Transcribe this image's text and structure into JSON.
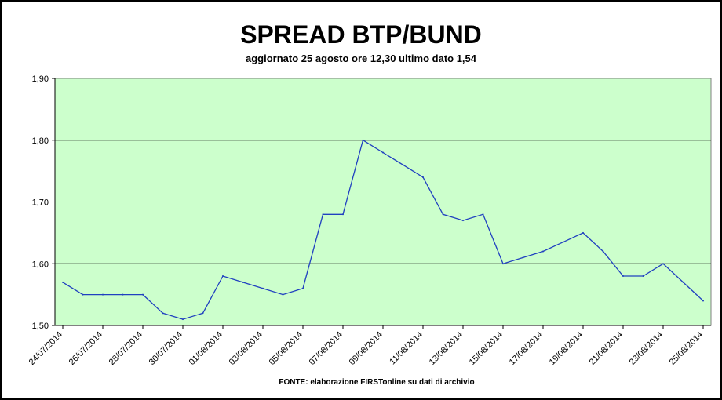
{
  "chart_data": {
    "type": "line",
    "title": "SPREAD BTP/BUND",
    "subtitle": "aggiornato 25 agosto ore 12,30 ultimo dato 1,54",
    "source": "FONTE: elaborazione FIRSTonline su dati di archivio",
    "ylim": [
      1.5,
      1.9
    ],
    "yticks": [
      "1,50",
      "1,60",
      "1,70",
      "1,80",
      "1,90"
    ],
    "xticks": [
      "24/07/2014",
      "26/07/2014",
      "28/07/2014",
      "30/07/2014",
      "01/08/2014",
      "03/08/2014",
      "05/08/2014",
      "07/08/2014",
      "09/08/2014",
      "11/08/2014",
      "13/08/2014",
      "15/08/2014",
      "17/08/2014",
      "19/08/2014",
      "21/08/2014",
      "23/08/2014",
      "25/08/2014"
    ],
    "grid": true,
    "plot_background": "#ccffcc",
    "line_color": "#2040c0",
    "series": [
      {
        "x": [
          "24/07/2014",
          "25/07/2014",
          "26/07/2014",
          "27/07/2014",
          "28/07/2014",
          "29/07/2014",
          "30/07/2014",
          "31/07/2014",
          "01/08/2014",
          "02/08/2014",
          "03/08/2014",
          "04/08/2014",
          "05/08/2014",
          "06/08/2014",
          "07/08/2014",
          "08/08/2014",
          "09/08/2014",
          "10/08/2014",
          "11/08/2014",
          "12/08/2014",
          "13/08/2014",
          "14/08/2014",
          "15/08/2014",
          "16/08/2014",
          "17/08/2014",
          "18/08/2014",
          "19/08/2014",
          "20/08/2014",
          "21/08/2014",
          "22/08/2014",
          "23/08/2014",
          "24/08/2014",
          "25/08/2014"
        ],
        "values": [
          1.57,
          1.55,
          1.55,
          1.55,
          1.55,
          1.52,
          1.51,
          1.52,
          1.58,
          1.57,
          1.56,
          1.55,
          1.56,
          1.68,
          1.68,
          1.8,
          1.78,
          1.76,
          1.74,
          1.68,
          1.67,
          1.68,
          1.6,
          1.61,
          1.62,
          1.635,
          1.65,
          1.62,
          1.58,
          1.58,
          1.6,
          1.57,
          1.54
        ]
      }
    ]
  }
}
